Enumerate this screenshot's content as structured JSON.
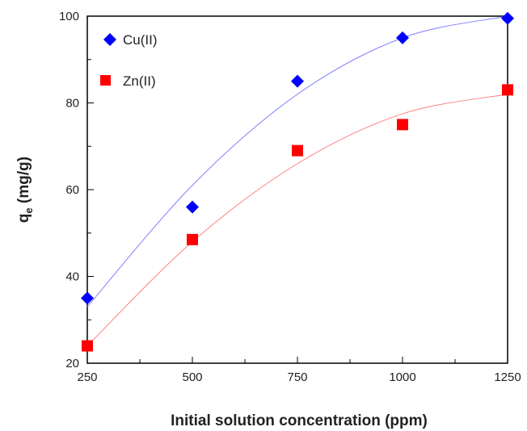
{
  "chart_data": {
    "type": "scatter",
    "title": "",
    "xlabel": "Initial solution concentration (ppm)",
    "ylabel_main": "q",
    "ylabel_sub": "e",
    "ylabel_rest": " (mg/g)",
    "xlim": [
      250,
      1250
    ],
    "ylim": [
      20,
      100
    ],
    "xticks": [
      250,
      500,
      750,
      1000,
      1250
    ],
    "yticks": [
      20,
      40,
      60,
      80,
      100
    ],
    "grid": false,
    "legend_position": "top-left",
    "series": [
      {
        "name": "Cu(II)",
        "marker": "diamond",
        "color": "#0000ff",
        "line_color": "#8080ff",
        "x": [
          250,
          500,
          750,
          1000,
          1250
        ],
        "y": [
          35,
          56,
          85,
          95,
          99.5
        ],
        "fit_x": [
          250,
          500,
          750,
          1000,
          1250
        ],
        "fit_y": [
          33,
          61,
          82,
          95,
          100
        ]
      },
      {
        "name": "Zn(II)",
        "marker": "square",
        "color": "#ff0000",
        "line_color": "#ff8080",
        "x": [
          250,
          500,
          750,
          1000,
          1250
        ],
        "y": [
          24,
          48.5,
          69,
          75,
          83
        ],
        "fit_x": [
          250,
          500,
          750,
          1000,
          1250
        ],
        "fit_y": [
          24,
          48,
          66,
          77.5,
          82
        ]
      }
    ]
  }
}
